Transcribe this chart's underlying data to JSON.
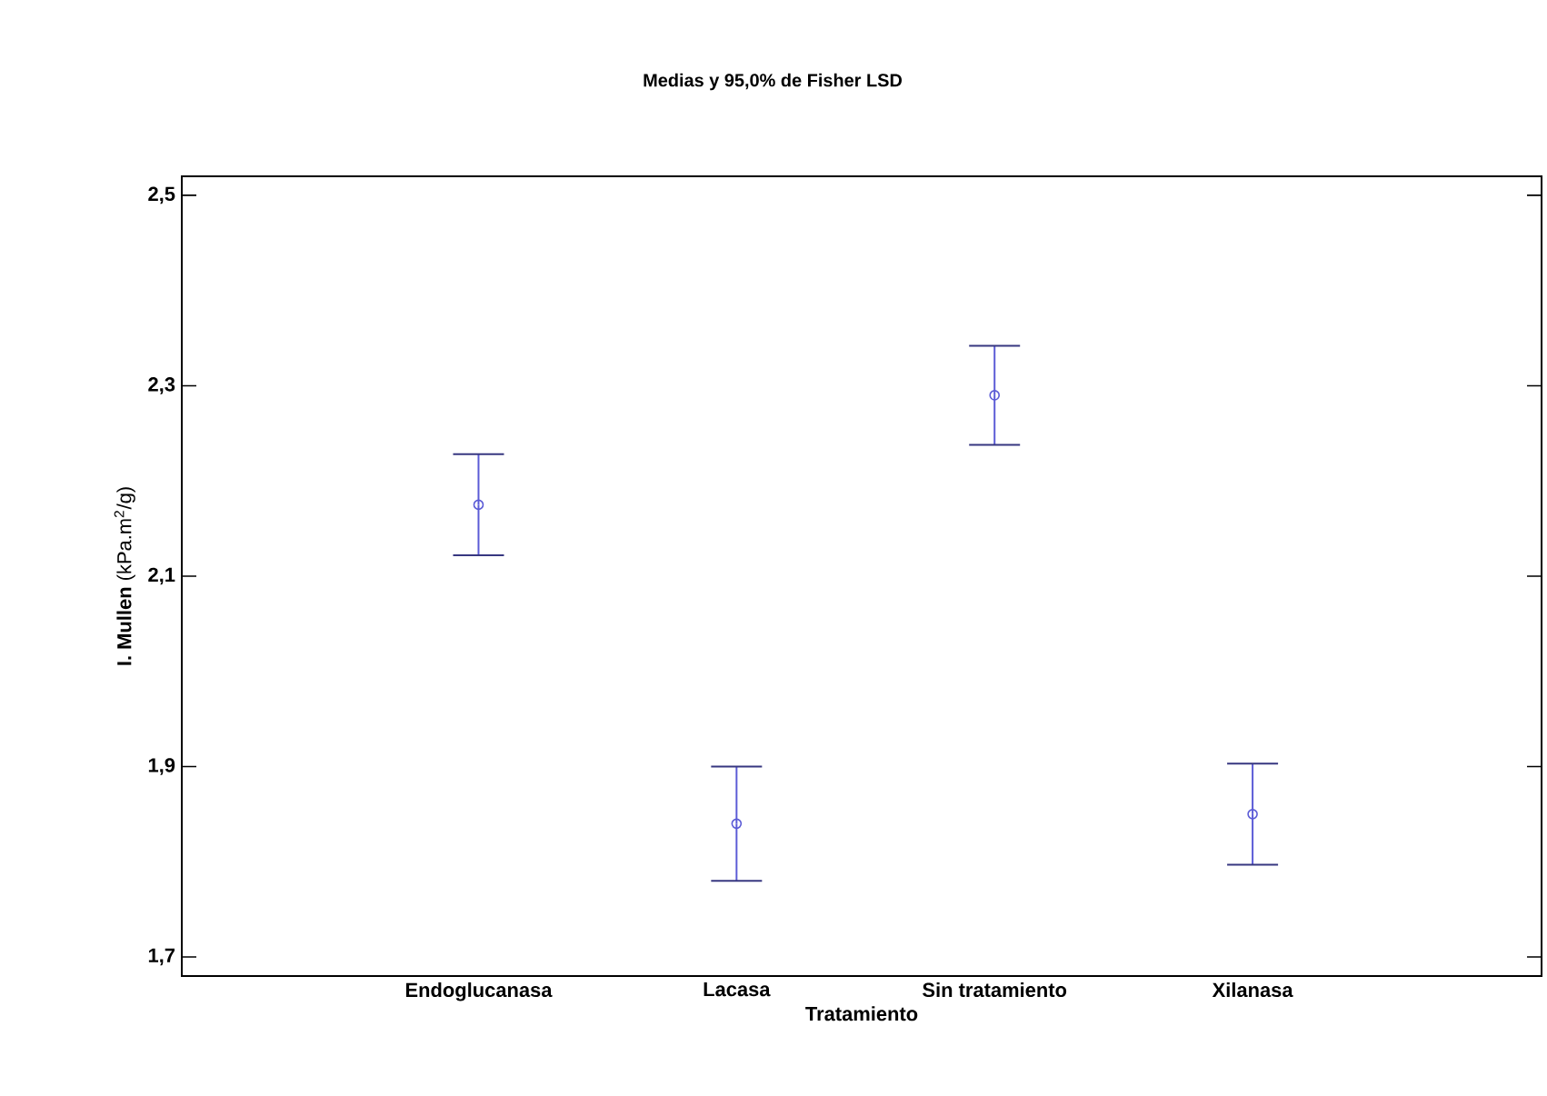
{
  "chart_data": {
    "type": "scatter",
    "title": "Medias y 95,0% de Fisher LSD",
    "xlabel": "Tratamiento",
    "ylabel": "**I. Mullen**  (kPa.m$^{2}$/g)",
    "categories": [
      "Endoglucanasa",
      "Lacasa",
      "Sin tratamiento",
      "Xilanasa"
    ],
    "values": [
      2.175,
      1.84,
      2.29,
      1.85
    ],
    "errors": [
      0.053,
      0.06,
      0.052,
      0.053
    ],
    "color": "#5b5bd6",
    "marker": "circle",
    "grid": false,
    "ylim": [
      1.68,
      2.52
    ],
    "yticks": [
      {
        "value": 1.7,
        "label": "1,7"
      },
      {
        "value": 1.9,
        "label": "1,9"
      },
      {
        "value": 2.1,
        "label": "2,1"
      },
      {
        "value": 2.3,
        "label": "2,3"
      },
      {
        "value": 2.5,
        "label": "2,5"
      }
    ]
  }
}
